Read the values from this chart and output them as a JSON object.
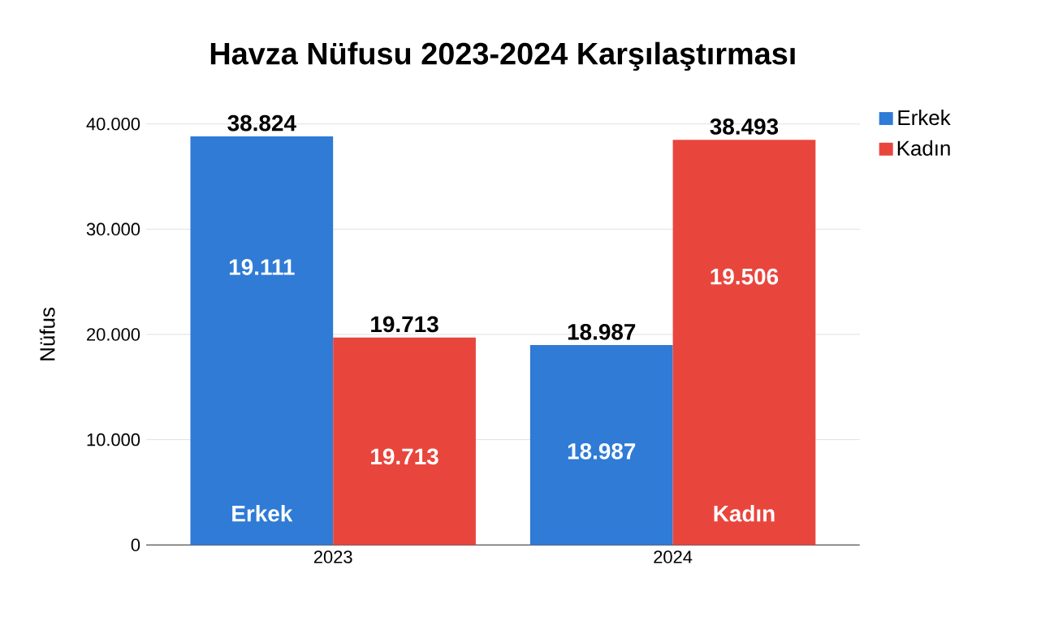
{
  "chart_data": {
    "type": "bar",
    "title": "Havza Nüfusu 2023-2024 Karşılaştırması",
    "ylabel": "Nüfus",
    "categories": [
      "2023",
      "2024"
    ],
    "series": [
      {
        "name": "Erkek",
        "color": "#2f7bd6",
        "values": [
          38824,
          18987
        ],
        "value_labels": [
          "38.824",
          "18.987"
        ]
      },
      {
        "name": "Kadın",
        "color": "#e8463d",
        "values": [
          19713,
          38493
        ],
        "value_labels": [
          "19.713",
          "38.493"
        ]
      }
    ],
    "annotations": [
      {
        "text": "19.111",
        "x": "2023",
        "y": 26400
      },
      {
        "text": "19.713",
        "x": "2023",
        "y": 8400
      },
      {
        "text": "Erkek",
        "x": "2023",
        "y": 3000
      },
      {
        "text": "19.506",
        "x": "2024",
        "y": 25500
      },
      {
        "text": "18.987",
        "x": "2024",
        "y": 8900
      },
      {
        "text": "Kadın",
        "x": "2024",
        "y": 3000
      }
    ],
    "ylim": [
      0,
      40000
    ],
    "yticks": [
      {
        "value": 0,
        "label": "0"
      },
      {
        "value": 10000,
        "label": "10.000"
      },
      {
        "value": 20000,
        "label": "20.000"
      },
      {
        "value": 30000,
        "label": "30.000"
      },
      {
        "value": 40000,
        "label": "40.000"
      }
    ],
    "grid": "y",
    "legend": "top right"
  }
}
